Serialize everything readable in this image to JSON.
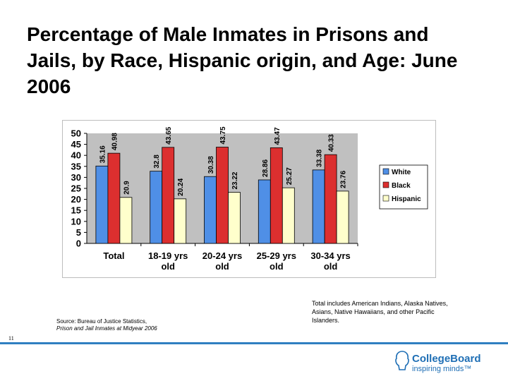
{
  "slide": {
    "title": "Percentage of Male Inmates in Prisons and Jails, by Race, Hispanic origin, and Age: June 2006",
    "note": "Total includes American Indians, Alaska Natives, Asians, Native Hawaiians, and other Pacific Islanders.",
    "source_line1": "Source: Bureau of Justice Statistics,",
    "source_line2": "Prison and Jail Inmates at Midyear 2006",
    "page_number": "11",
    "logo_name": "CollegeBoard",
    "logo_tagline": "inspiring minds™"
  },
  "chart_data": {
    "type": "bar",
    "categories": [
      "Total",
      "18-19 yrs old",
      "20-24 yrs old",
      "25-29 yrs old",
      "30-34 yrs old"
    ],
    "series": [
      {
        "name": "White",
        "values": [
          35.16,
          32.8,
          30.38,
          28.86,
          33.38
        ],
        "color": "#4f8fe6"
      },
      {
        "name": "Black",
        "values": [
          40.98,
          43.65,
          43.75,
          43.47,
          40.33
        ],
        "color": "#dc2f2f"
      },
      {
        "name": "Hispanic",
        "values": [
          20.9,
          20.24,
          23.22,
          25.27,
          23.76
        ],
        "color": "#ffffcc"
      }
    ],
    "data_labels": [
      [
        "35.16",
        "32.8",
        "30.38",
        "28.86",
        "33.38"
      ],
      [
        "40.98",
        "43.65",
        "43.75",
        "43.47",
        "40.33"
      ],
      [
        "20.9",
        "20.24",
        "23.22",
        "25.27",
        "23.76"
      ]
    ],
    "y_ticks": [
      0,
      5,
      10,
      15,
      20,
      25,
      30,
      35,
      40,
      45,
      50
    ],
    "ylim": [
      0,
      50
    ],
    "grid": false,
    "legend_position": "right",
    "plot_background": "#c0c0c0"
  }
}
